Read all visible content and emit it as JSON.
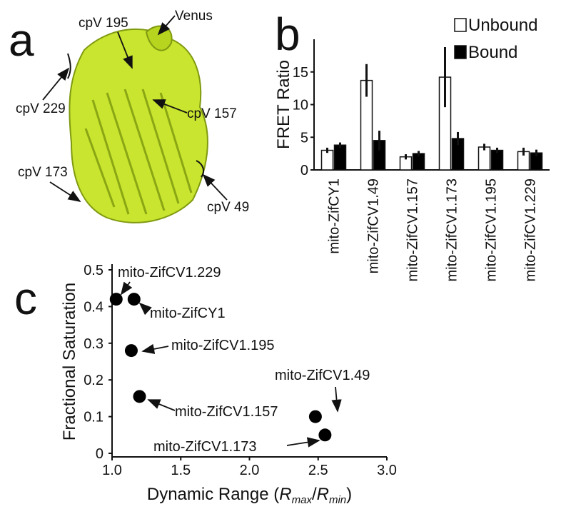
{
  "panel_letters": [
    "a",
    "b",
    "c"
  ],
  "structure": {
    "labels": [
      "Venus",
      "cpV 195",
      "cpV 229",
      "cpV 157",
      "cpV 173",
      "cpV 49"
    ]
  },
  "chart_data": [
    {
      "type": "bar",
      "y_label": "FRET Ratio",
      "categories": [
        "mito-ZifCY1",
        "mito-ZifCV1.49",
        "mito-ZifCV1.157",
        "mito-ZifCV1.173",
        "mito-ZifCV1.195",
        "mito-ZifCV1.229"
      ],
      "series": [
        {
          "name": "Unbound",
          "color": "#ffffff",
          "values": [
            3.0,
            13.7,
            2.0,
            14.2,
            3.5,
            2.8
          ],
          "errors": [
            0.4,
            2.5,
            0.4,
            4.6,
            0.5,
            0.6
          ]
        },
        {
          "name": "Bound",
          "color": "#000000",
          "values": [
            3.8,
            4.5,
            2.5,
            4.8,
            3.0,
            2.6
          ],
          "errors": [
            0.4,
            1.5,
            0.4,
            1.0,
            0.4,
            0.5
          ]
        }
      ],
      "ylim": [
        0,
        20
      ],
      "yticks": [
        0,
        5,
        10,
        15
      ],
      "legend": "top-right"
    },
    {
      "type": "scatter",
      "y_label": "Fractional Saturation",
      "x_label": [
        "Dynamic Range (",
        "R",
        "max",
        "/",
        "R",
        "min",
        ")"
      ],
      "points": [
        "mito-ZifCV1.229",
        "mito-ZifCY1",
        "mito-ZifCV1.195",
        "mito-ZifCV1.157",
        "mito-ZifCV1.49",
        "mito-ZifCV1.173"
      ],
      "x": [
        1.03,
        1.16,
        1.14,
        1.2,
        2.48,
        2.55
      ],
      "values": [
        0.42,
        0.42,
        0.28,
        0.155,
        0.1,
        0.05
      ],
      "color": "#000000",
      "xlim": [
        1,
        3
      ],
      "xticks": [
        {
          "value": 1,
          "label": "1.0"
        },
        1.5,
        {
          "value": 2,
          "label": "2.0"
        },
        2.5,
        {
          "value": 3,
          "label": "3.0"
        }
      ],
      "ylim": [
        0,
        0.5
      ],
      "yticks": [
        0,
        0.1,
        0.2,
        0.3,
        0.4,
        0.5
      ]
    }
  ]
}
